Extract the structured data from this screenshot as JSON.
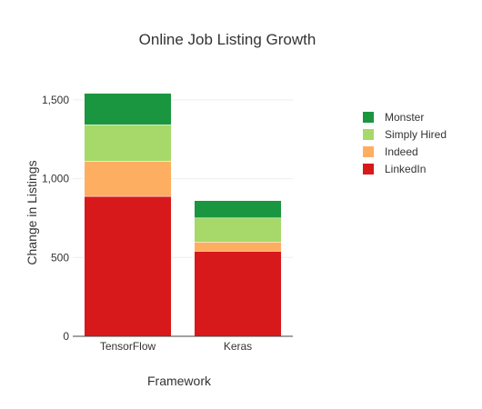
{
  "chart_data": {
    "type": "bar",
    "stacked": true,
    "title": "Online Job Listing Growth",
    "xlabel": "Framework",
    "ylabel": "Change in Listings",
    "categories": [
      "TensorFlow",
      "Keras"
    ],
    "series": [
      {
        "name": "LinkedIn",
        "color": "#d7191c",
        "values": [
          888,
          540
        ]
      },
      {
        "name": "Indeed",
        "color": "#fdae61",
        "values": [
          222,
          58
        ]
      },
      {
        "name": "Simply Hired",
        "color": "#a6d96a",
        "values": [
          232,
          153
        ]
      },
      {
        "name": "Monster",
        "color": "#1a9641",
        "values": [
          200,
          110
        ]
      }
    ],
    "ylim": [
      0,
      1540
    ],
    "yticks": [
      0,
      500,
      1000,
      1500
    ],
    "ytick_labels": [
      "0",
      "500",
      "1,000",
      "1,500"
    ],
    "grid": true,
    "legend_position": "top-right"
  }
}
